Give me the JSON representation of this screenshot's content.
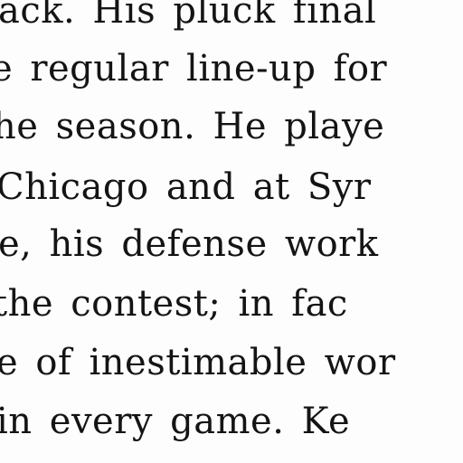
{
  "text": {
    "lines": [
      "ack.  His pluck final",
      "e regular line-up for",
      "he season.  He playe",
      " Chicago and at Syr",
      "e, his defense work",
      "  the contest; in fac",
      "e of inestimable wor",
      "in every game.  Ke"
    ]
  }
}
